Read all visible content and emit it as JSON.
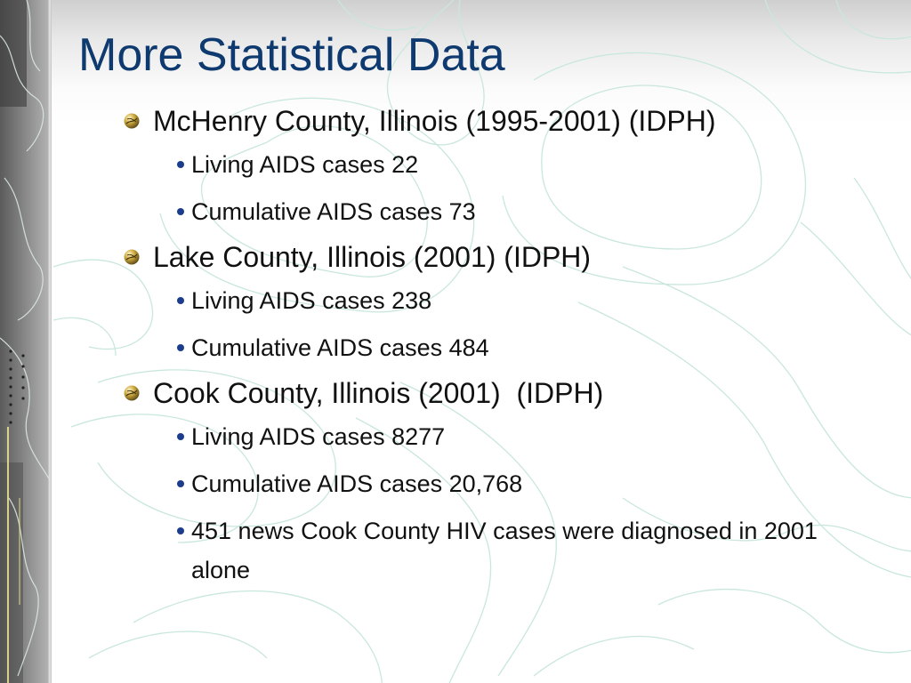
{
  "slide": {
    "title": "More Statistical Data",
    "sections": [
      {
        "heading": "McHenry County, Illinois (1995-2001) (IDPH)",
        "items": [
          "Living AIDS cases 22",
          "Cumulative AIDS cases 73"
        ]
      },
      {
        "heading": "Lake County, Illinois (2001) (IDPH)",
        "items": [
          "Living AIDS cases 238",
          "Cumulative AIDS cases 484"
        ]
      },
      {
        "heading": "Cook County, Illinois (2001)  (IDPH)",
        "items": [
          "Living AIDS cases 8277",
          "Cumulative AIDS cases 20,768",
          "451 news Cook County HIV cases were diagnosed in 2001 alone"
        ]
      }
    ]
  },
  "colors": {
    "title": "#0e3a70",
    "body_text": "#111111",
    "sub_bullet": "#1c3d8c",
    "contour_lines": "#c9e7dc"
  },
  "icons": {
    "level1_bullet": "gold-ball-bullet-icon",
    "level2_bullet": "dot-bullet-icon"
  }
}
